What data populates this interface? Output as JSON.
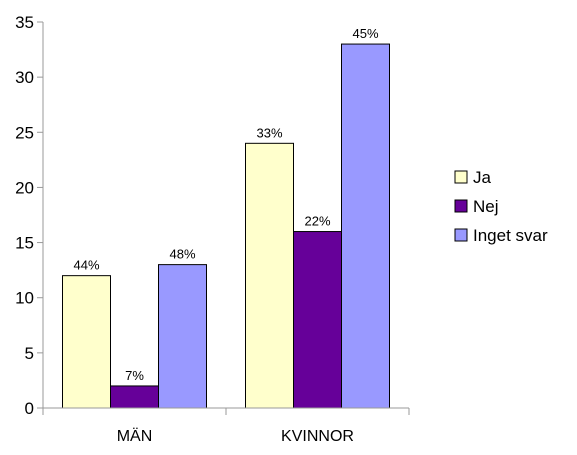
{
  "chart_data": {
    "type": "bar",
    "categories": [
      "MÄN",
      "KVINNOR"
    ],
    "series": [
      {
        "name": "Ja",
        "values": [
          12,
          24
        ],
        "labels": [
          "44%",
          "33%"
        ],
        "color": "#ffffcc"
      },
      {
        "name": "Nej",
        "values": [
          2,
          16
        ],
        "labels": [
          "7%",
          "22%"
        ],
        "color": "#660099"
      },
      {
        "name": "Inget svar",
        "values": [
          13,
          33
        ],
        "labels": [
          "48%",
          "45%"
        ],
        "color": "#9999ff"
      }
    ],
    "ylim": [
      0,
      35
    ],
    "yticks": [
      0,
      5,
      10,
      15,
      20,
      25,
      30,
      35
    ],
    "grid": false,
    "legend_position": "right"
  }
}
